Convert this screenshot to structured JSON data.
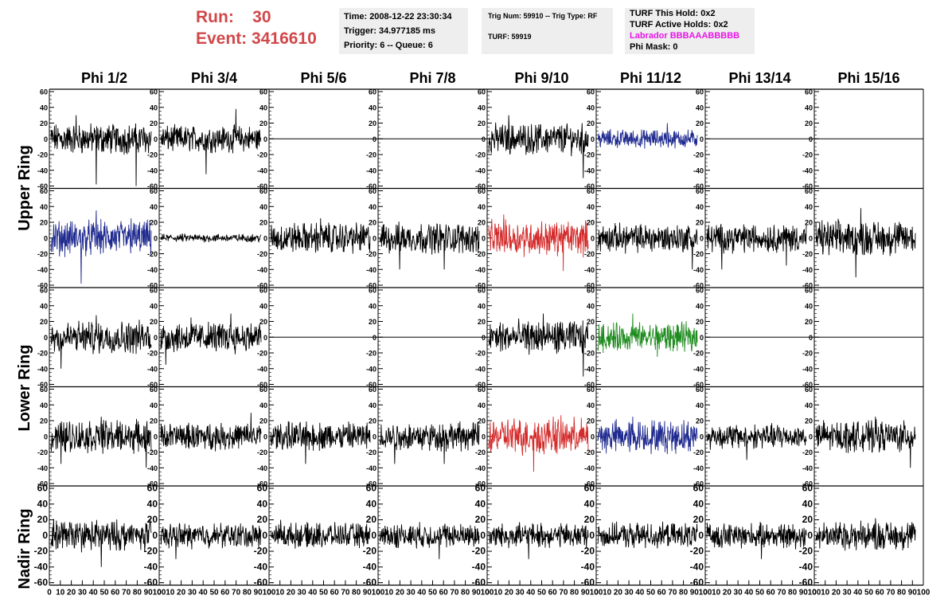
{
  "header": {
    "run_label": "Run:",
    "run_value": "30",
    "event_label": "Event:",
    "event_value": "3416610",
    "time": "Time: 2008-12-22 23:30:34",
    "trigger": "Trigger: 34.977185 ms",
    "priority": "Priority: 6 -- Queue: 6",
    "trig_num": "Trig Num: 59910 -- Trig Type: RF",
    "turf": "TURF: 59919",
    "turf_this_hold": "TURF This Hold: 0x2",
    "turf_active_holds": "TURF Active Holds: 0x2",
    "labrador": "Labrador BBBAAABBBBB",
    "phi_mask": "Phi Mask: 0"
  },
  "colors": {
    "run_text": "#d0484a",
    "labrador_text": "#e815e8",
    "trace_default": "#000000",
    "trace_blue": "#1f2a8f",
    "trace_red": "#d42a2a",
    "trace_green": "#1f8c1f"
  },
  "chart_data": {
    "type": "line",
    "columns": [
      "Phi 1/2",
      "Phi 3/4",
      "Phi 5/6",
      "Phi 7/8",
      "Phi 9/10",
      "Phi 11/12",
      "Phi 13/14",
      "Phi 15/16"
    ],
    "rows": [
      "Upper Ring",
      "Lower Ring",
      "Nadir Ring"
    ],
    "ylim": [
      -60,
      60
    ],
    "yticks": [
      -60,
      -40,
      -20,
      0,
      20,
      40,
      60
    ],
    "xlim": [
      0,
      100
    ],
    "xticks": [
      0,
      10,
      20,
      30,
      40,
      50,
      60,
      70,
      80,
      90,
      100
    ],
    "tick_labels_x": [
      "0",
      "10",
      "20",
      "30",
      "40",
      "50",
      "60",
      "70",
      "80",
      "90",
      "100"
    ],
    "tick_labels_y": [
      "-60",
      "-40",
      "-20",
      "0",
      "20",
      "40",
      "60"
    ],
    "panels": [
      [
        {
          "color": "black",
          "amp": 15,
          "spikes": [
            [
              45,
              -58
            ],
            [
              85,
              -60
            ],
            [
              25,
              30
            ]
          ]
        },
        {
          "color": "black",
          "amp": 13,
          "spikes": [
            [
              45,
              -45
            ],
            [
              75,
              38
            ]
          ]
        },
        {
          "color": "black",
          "amp": 0,
          "flat": true
        },
        {
          "color": "black",
          "amp": 0,
          "flat": true
        },
        {
          "color": "black",
          "amp": 15,
          "spikes": [
            [
              95,
              -50
            ],
            [
              20,
              30
            ]
          ]
        },
        {
          "color": "blue",
          "amp": 9,
          "spikes": [
            [
              70,
              20
            ]
          ]
        },
        {
          "color": "black",
          "amp": 0,
          "flat": true
        },
        {
          "color": "black",
          "amp": 0,
          "flat": true
        }
      ],
      [
        {
          "color": "blue",
          "amp": 17,
          "spikes": [
            [
              30,
              -58
            ],
            [
              45,
              35
            ],
            [
              80,
              25
            ]
          ]
        },
        {
          "color": "black",
          "amp": 4,
          "spikes": []
        },
        {
          "color": "black",
          "amp": 15,
          "spikes": [
            [
              50,
              25
            ]
          ]
        },
        {
          "color": "black",
          "amp": 15,
          "spikes": [
            [
              65,
              -40
            ],
            [
              20,
              -40
            ]
          ]
        },
        {
          "color": "red",
          "amp": 17,
          "spikes": [
            [
              15,
              30
            ],
            [
              75,
              -42
            ]
          ]
        },
        {
          "color": "black",
          "amp": 14,
          "spikes": [
            [
              95,
              -40
            ]
          ]
        },
        {
          "color": "black",
          "amp": 14,
          "spikes": [
            [
              15,
              -40
            ],
            [
              80,
              -35
            ]
          ]
        },
        {
          "color": "black",
          "amp": 17,
          "spikes": [
            [
              45,
              38
            ],
            [
              40,
              -50
            ]
          ]
        }
      ],
      [
        {
          "color": "black",
          "amp": 16,
          "spikes": [
            [
              10,
              -40
            ],
            [
              45,
              28
            ]
          ]
        },
        {
          "color": "black",
          "amp": 15,
          "spikes": [
            [
              30,
              25
            ],
            [
              70,
              30
            ],
            [
              5,
              -35
            ]
          ]
        },
        {
          "color": "black",
          "amp": 0,
          "flat": true
        },
        {
          "color": "black",
          "amp": 0,
          "flat": true
        },
        {
          "color": "black",
          "amp": 16,
          "spikes": [
            [
              95,
              -50
            ],
            [
              55,
              30
            ]
          ]
        },
        {
          "color": "green",
          "amp": 14,
          "spikes": [
            [
              35,
              30
            ],
            [
              60,
              -25
            ]
          ]
        },
        {
          "color": "black",
          "amp": 0,
          "flat": true
        },
        {
          "color": "black",
          "amp": 0,
          "flat": true
        }
      ],
      [
        {
          "color": "black",
          "amp": 16,
          "spikes": [
            [
              10,
              -35
            ],
            [
              50,
              25
            ],
            [
              95,
              -40
            ]
          ]
        },
        {
          "color": "black",
          "amp": 13,
          "spikes": [
            [
              90,
              30
            ]
          ]
        },
        {
          "color": "black",
          "amp": 14,
          "spikes": [
            [
              35,
              -35
            ]
          ]
        },
        {
          "color": "black",
          "amp": 14,
          "spikes": [
            [
              15,
              -35
            ],
            [
              65,
              -35
            ]
          ]
        },
        {
          "color": "red",
          "amp": 18,
          "spikes": [
            [
              45,
              -45
            ],
            [
              65,
              25
            ]
          ]
        },
        {
          "color": "blue",
          "amp": 16,
          "spikes": [
            [
              35,
              25
            ]
          ]
        },
        {
          "color": "black",
          "amp": 12,
          "spikes": [
            [
              40,
              -30
            ]
          ]
        },
        {
          "color": "black",
          "amp": 15,
          "spikes": [
            [
              95,
              -40
            ],
            [
              60,
              25
            ]
          ]
        }
      ],
      [
        {
          "color": "black",
          "amp": 15,
          "spikes": [
            [
              50,
              -40
            ]
          ]
        },
        {
          "color": "black",
          "amp": 12,
          "spikes": [
            [
              15,
              -30
            ]
          ]
        },
        {
          "color": "black",
          "amp": 12,
          "spikes": [
            [
              10,
              20
            ]
          ]
        },
        {
          "color": "black",
          "amp": 12,
          "spikes": [
            [
              60,
              -30
            ]
          ]
        },
        {
          "color": "black",
          "amp": 12,
          "spikes": [
            [
              40,
              -30
            ]
          ]
        },
        {
          "color": "black",
          "amp": 12,
          "spikes": [
            [
              50,
              15
            ]
          ]
        },
        {
          "color": "black",
          "amp": 12,
          "spikes": [
            [
              55,
              -30
            ]
          ]
        },
        {
          "color": "black",
          "amp": 14,
          "spikes": [
            [
              60,
              22
            ]
          ]
        }
      ]
    ]
  }
}
